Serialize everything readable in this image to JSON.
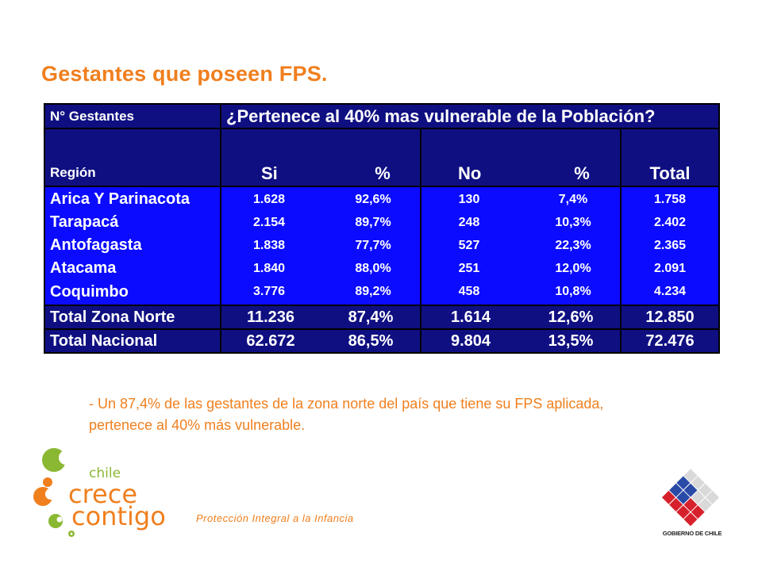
{
  "title": "Gestantes que poseen FPS.",
  "table": {
    "corner_label": "N° Gestantes",
    "question": "¿Pertenece al 40% mas vulnerable de la Población?",
    "region_label": "Región",
    "columns": [
      "Si",
      "%",
      "No",
      "%",
      "Total"
    ],
    "rows": [
      {
        "region": "Arica Y Parinacota",
        "si": "1.628",
        "si_pct": "92,6%",
        "no": "130",
        "no_pct": "7,4%",
        "total": "1.758"
      },
      {
        "region": "Tarapacá",
        "si": "2.154",
        "si_pct": "89,7%",
        "no": "248",
        "no_pct": "10,3%",
        "total": "2.402"
      },
      {
        "region": "Antofagasta",
        "si": "1.838",
        "si_pct": "77,7%",
        "no": "527",
        "no_pct": "22,3%",
        "total": "2.365"
      },
      {
        "region": "Atacama",
        "si": "1.840",
        "si_pct": "88,0%",
        "no": "251",
        "no_pct": "12,0%",
        "total": "2.091"
      },
      {
        "region": "Coquimbo",
        "si": "3.776",
        "si_pct": "89,2%",
        "no": "458",
        "no_pct": "10,8%",
        "total": "4.234"
      }
    ],
    "totals": [
      {
        "label": "Total Zona Norte",
        "si": "11.236",
        "si_pct": "87,4%",
        "no": "1.614",
        "no_pct": "12,6%",
        "total": "12.850"
      },
      {
        "label": "Total Nacional",
        "si": "62.672",
        "si_pct": "86,5%",
        "no": "9.804",
        "no_pct": "13,5%",
        "total": "72.476"
      }
    ]
  },
  "note": "- Un 87,4% de las gestantes de la zona norte del país que tiene su FPS aplicada, pertenece al 40% más vulnerable.",
  "logo": {
    "line1": "chile",
    "line2": "crece",
    "line3": "contigo"
  },
  "tagline": "Protección Integral a la Infancia",
  "gov_logo_text": "GOBIERNO DE CHILE",
  "colors": {
    "accent": "#f07f1e",
    "navy": "#0f0f82",
    "blue": "#0b0bff",
    "logo_green": "#8ab833"
  }
}
